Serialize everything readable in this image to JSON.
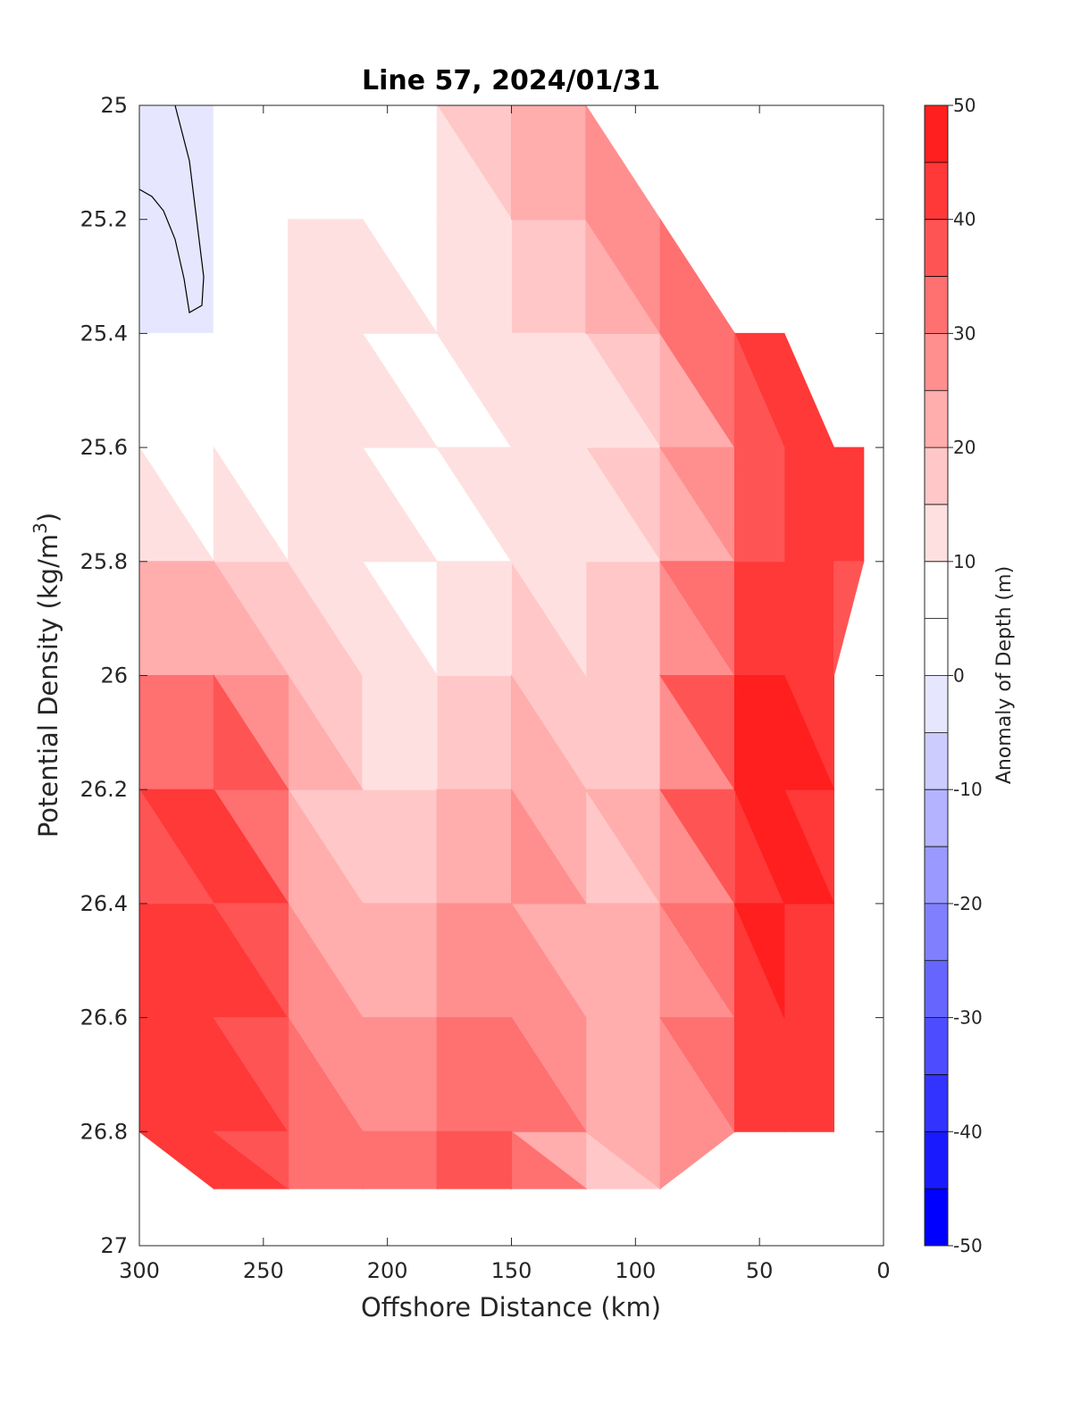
{
  "chart_data": {
    "type": "heatmap",
    "subtype": "filled-contour",
    "title": "Line 57, 2024/01/31",
    "xlabel": "Offshore Distance (km)",
    "ylabel": "Potential Density (kg/m3)",
    "ylabel_parts": [
      "Potential Density (kg/m",
      "3",
      ")"
    ],
    "x_reversed": true,
    "y_reversed": true,
    "xlim": [
      0,
      300
    ],
    "ylim": [
      25,
      27
    ],
    "xticks": [
      300,
      250,
      200,
      150,
      100,
      50,
      0
    ],
    "yticks": [
      "25",
      "25.2",
      "25.4",
      "25.6",
      "25.8",
      "26",
      "26.2",
      "26.4",
      "26.6",
      "26.8",
      "27"
    ],
    "colorbar": {
      "label": "Anomaly of Depth (m)",
      "ticks": [
        50,
        40,
        30,
        20,
        10,
        0,
        -10,
        -20,
        -30,
        -40,
        -50
      ],
      "levels": [
        -50,
        -45,
        -40,
        -35,
        -30,
        -25,
        -20,
        -15,
        -10,
        -5,
        0,
        5,
        10,
        15,
        20,
        25,
        30,
        35,
        40,
        45,
        50
      ],
      "colors": [
        "#0000ff",
        "#1a1aff",
        "#3333ff",
        "#4d4dff",
        "#6666ff",
        "#8080ff",
        "#9999ff",
        "#b3b3ff",
        "#ccccff",
        "#e6e6ff",
        "#ffffff",
        "#ffffff",
        "#ffe0e0",
        "#ffc7c7",
        "#ffadad",
        "#ff8f8f",
        "#ff7070",
        "#ff5454",
        "#ff3838",
        "#ff1f1f",
        "#ff0000"
      ]
    },
    "grid": false,
    "anomaly_field": {
      "x_km": [
        300,
        270,
        240,
        210,
        180,
        150,
        120,
        90,
        60,
        40,
        20,
        8
      ],
      "y_density": [
        25.0,
        25.2,
        25.4,
        25.6,
        25.8,
        26.0,
        26.2,
        26.4,
        26.6,
        26.8,
        26.9
      ],
      "values_m": [
        [
          -3,
          -2,
          7,
          9,
          11,
          20,
          30,
          null,
          null,
          null,
          null,
          null
        ],
        [
          -3,
          -1,
          8,
          11,
          9,
          18,
          24,
          30,
          null,
          null,
          null,
          null
        ],
        [
          -2,
          1,
          9,
          13,
          9,
          16,
          17,
          22,
          38,
          44,
          null,
          null
        ],
        [
          4,
          4,
          11,
          14,
          7,
          13,
          11,
          16,
          33,
          39,
          42,
          44
        ],
        [
          12,
          18,
          14,
          12,
          4,
          14,
          10,
          18,
          37,
          44,
          41,
          38
        ],
        [
          24,
          33,
          22,
          12,
          9,
          20,
          15,
          22,
          45,
          48,
          40,
          null
        ],
        [
          33,
          46,
          26,
          15,
          12,
          26,
          18,
          22,
          43,
          50,
          44,
          null
        ],
        [
          36,
          47,
          30,
          18,
          20,
          30,
          20,
          20,
          42,
          48,
          40,
          null
        ],
        [
          38,
          46,
          32,
          22,
          26,
          34,
          21,
          20,
          41,
          45,
          40,
          null
        ],
        [
          38,
          44,
          34,
          26,
          32,
          42,
          20,
          22,
          40,
          44,
          36,
          null
        ],
        [
          null,
          42,
          38,
          32,
          38,
          40,
          10,
          22,
          null,
          null,
          null,
          null
        ]
      ]
    }
  }
}
